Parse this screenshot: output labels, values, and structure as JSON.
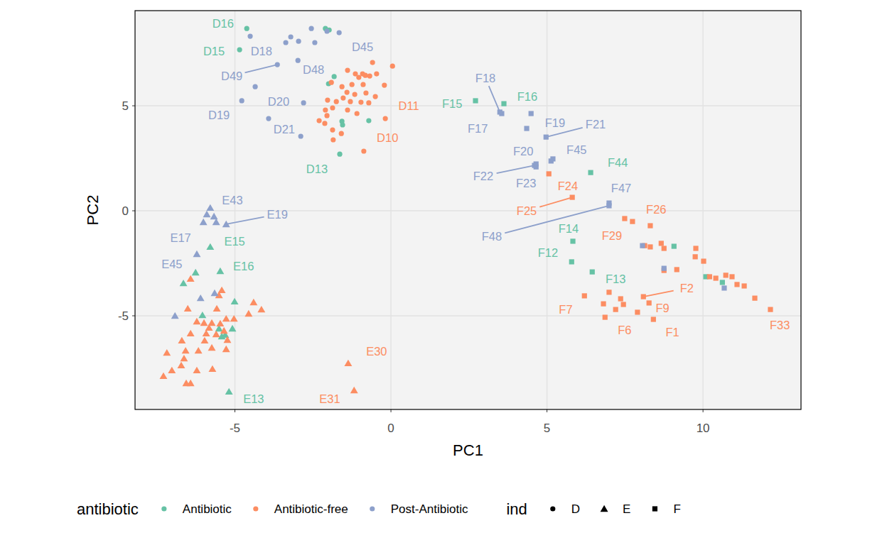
{
  "chart_data": {
    "type": "scatter",
    "x_label": "PC1",
    "y_label": "PC2",
    "xlim": [
      -8.2,
      13.14
    ],
    "ylim": [
      -9.46,
      9.53
    ],
    "xticks": [
      -5,
      0,
      5,
      10
    ],
    "yticks": [
      -5,
      0,
      5
    ],
    "grid": true,
    "legend": "bottom",
    "legends": [
      {
        "title": "antibiotic",
        "entries": [
          {
            "label": "Antibiotic",
            "color": "#66c2a5",
            "marker": "circle"
          },
          {
            "label": "Antibiotic-free",
            "color": "#fc8d62",
            "marker": "circle"
          },
          {
            "label": "Post-Antibiotic",
            "color": "#8da0cb",
            "marker": "circle"
          }
        ]
      },
      {
        "title": "ind",
        "entries": [
          {
            "label": "D",
            "color": "#000000",
            "marker": "circle"
          },
          {
            "label": "E",
            "color": "#000000",
            "marker": "triangle"
          },
          {
            "label": "F",
            "color": "#000000",
            "marker": "square"
          }
        ]
      }
    ],
    "series": [
      {
        "color": "#66c2a5",
        "marker": "circle",
        "x": [
          -4.62,
          -4.85,
          -2.1,
          -1.98,
          -1.82,
          -2.0,
          -1.57,
          -1.55,
          -1.64,
          -0.71
        ],
        "values": [
          8.68,
          7.67,
          8.68,
          8.61,
          6.39,
          6.05,
          4.26,
          4.09,
          2.7,
          4.29
        ],
        "labels": [
          "D16",
          "D15",
          null,
          null,
          null,
          null,
          null,
          null,
          "D13",
          null
        ],
        "label_x": [
          -5.38,
          -5.67,
          null,
          null,
          null,
          null,
          null,
          null,
          -2.37,
          null
        ],
        "label_y": [
          8.92,
          7.6,
          null,
          null,
          null,
          null,
          null,
          null,
          1.99,
          null
        ]
      },
      {
        "color": "#fc8d62",
        "marker": "circle",
        "x": [
          0.05,
          -0.59,
          -1.39,
          -1.14,
          -0.91,
          -1.03,
          -0.82,
          -0.68,
          -0.46,
          -0.21,
          -1.91,
          -1.57,
          -1.25,
          -0.89,
          -1.41,
          -1.16,
          -0.8,
          -0.5,
          -1.53,
          -1.75,
          -2.03,
          -1.3,
          -0.96,
          -0.71,
          -1.87,
          -1.39,
          -2.1,
          -1.09,
          -0.18,
          -2.3,
          -2.12,
          -1.87,
          -1.85,
          -0.87,
          -1.59,
          -2.05
        ],
        "values": [
          6.89,
          7.06,
          6.69,
          6.52,
          6.52,
          6.35,
          6.45,
          6.42,
          6.52,
          5.98,
          6.11,
          5.91,
          6.01,
          6.01,
          5.64,
          5.54,
          5.61,
          5.44,
          5.37,
          5.2,
          5.27,
          5.2,
          5.17,
          5.14,
          4.9,
          4.8,
          4.8,
          4.63,
          4.39,
          4.29,
          4.16,
          3.85,
          3.38,
          2.84,
          3.68,
          4.53
        ],
        "labels": [
          null,
          null,
          null,
          null,
          null,
          null,
          null,
          null,
          null,
          null,
          null,
          null,
          null,
          null,
          null,
          null,
          null,
          null,
          null,
          null,
          null,
          null,
          null,
          null,
          null,
          null,
          null,
          null,
          "D11",
          null,
          null,
          null,
          null,
          "D10",
          null,
          null
        ],
        "label_x": [
          null,
          null,
          null,
          null,
          null,
          null,
          null,
          null,
          null,
          null,
          null,
          null,
          null,
          null,
          null,
          null,
          null,
          null,
          null,
          null,
          null,
          null,
          null,
          null,
          null,
          null,
          null,
          null,
          0.57,
          null,
          null,
          null,
          null,
          -0.11,
          null,
          null
        ],
        "label_y": [
          null,
          null,
          null,
          null,
          null,
          null,
          null,
          null,
          null,
          null,
          null,
          null,
          null,
          null,
          null,
          null,
          null,
          null,
          null,
          null,
          null,
          null,
          null,
          null,
          null,
          null,
          null,
          null,
          5.0,
          null,
          null,
          null,
          null,
          3.48,
          null,
          null
        ]
      },
      {
        "color": "#8da0cb",
        "marker": "circle",
        "x": [
          -4.51,
          -3.37,
          -3.21,
          -2.96,
          -2.55,
          -2.44,
          -2.05,
          -1.66,
          -2.98,
          -3.64,
          -4.35,
          -4.78,
          -3.92,
          -2.8,
          -2.89
        ],
        "values": [
          8.31,
          8.01,
          8.28,
          8.07,
          8.68,
          8.01,
          8.55,
          8.48,
          7.16,
          6.96,
          5.91,
          5.24,
          4.39,
          5.14,
          3.55
        ],
        "labels": [
          null,
          "D18",
          null,
          null,
          null,
          null,
          null,
          "D45",
          "D48",
          "D49",
          null,
          "D19",
          null,
          "D20",
          "D21"
        ],
        "label_x": [
          null,
          -4.15,
          null,
          null,
          null,
          null,
          null,
          -0.91,
          -2.48,
          -5.1,
          null,
          -5.51,
          null,
          -3.6,
          -3.42
        ],
        "label_y": [
          null,
          7.6,
          null,
          null,
          null,
          null,
          null,
          7.8,
          6.72,
          6.42,
          null,
          4.56,
          null,
          5.2,
          3.89
        ]
      },
      {
        "color": "#66c2a5",
        "marker": "triangle",
        "x": [
          -5.79,
          -5.47,
          -6.26,
          -6.65,
          -5.01,
          -6.04,
          -5.51,
          -5.08,
          -5.31,
          -5.42,
          -5.19
        ],
        "values": [
          -1.72,
          -2.87,
          -2.94,
          -3.45,
          -4.32,
          -4.97,
          -5.61,
          -5.61,
          -5.91,
          -5.98,
          -8.61
        ],
        "labels": [
          "E15",
          "E16",
          null,
          null,
          null,
          null,
          null,
          null,
          null,
          null,
          "E13"
        ],
        "label_x": [
          -5.01,
          -4.72,
          null,
          null,
          null,
          null,
          null,
          null,
          null,
          null,
          -4.4
        ],
        "label_y": [
          -1.45,
          -2.64,
          null,
          null,
          null,
          null,
          null,
          null,
          null,
          null,
          -8.95
        ]
      },
      {
        "color": "#fc8d62",
        "marker": "triangle",
        "x": [
          -6.42,
          -5.42,
          -5.51,
          -4.4,
          -4.15,
          -6.51,
          -5.58,
          -6.22,
          -5.99,
          -5.74,
          -5.28,
          -5.03,
          -4.56,
          -5.83,
          -5.47,
          -5.35,
          -6.42,
          -5.92,
          -5.6,
          -6.7,
          -5.97,
          -5.24,
          -6.58,
          -6.17,
          -5.74,
          -5.28,
          -7.18,
          -6.63,
          -7.02,
          -6.22,
          -5.72,
          -6.72,
          -7.29,
          -6.56,
          -6.42,
          -1.37,
          -1.18
        ],
        "values": [
          -3.24,
          -3.78,
          -4.02,
          -4.36,
          -4.7,
          -4.66,
          -4.66,
          -5.27,
          -5.34,
          -5.34,
          -5.14,
          -5.14,
          -4.9,
          -5.57,
          -5.37,
          -5.71,
          -5.84,
          -5.84,
          -5.88,
          -6.18,
          -6.18,
          -6.15,
          -6.66,
          -6.66,
          -6.52,
          -6.59,
          -6.76,
          -7.03,
          -7.6,
          -7.6,
          -7.53,
          -7.36,
          -7.87,
          -8.21,
          -8.21,
          -7.26,
          -8.55
        ],
        "labels": [
          null,
          null,
          null,
          null,
          null,
          null,
          null,
          null,
          null,
          null,
          null,
          null,
          null,
          null,
          null,
          null,
          null,
          null,
          null,
          null,
          null,
          null,
          null,
          null,
          null,
          null,
          null,
          null,
          null,
          null,
          null,
          null,
          null,
          null,
          null,
          "E30",
          "E31"
        ],
        "label_x": [
          null,
          null,
          null,
          null,
          null,
          null,
          null,
          null,
          null,
          null,
          null,
          null,
          null,
          null,
          null,
          null,
          null,
          null,
          null,
          null,
          null,
          null,
          null,
          null,
          null,
          null,
          null,
          null,
          null,
          null,
          null,
          null,
          null,
          null,
          null,
          -0.46,
          -1.96
        ],
        "label_y": [
          null,
          null,
          null,
          null,
          null,
          null,
          null,
          null,
          null,
          null,
          null,
          null,
          null,
          null,
          null,
          null,
          null,
          null,
          null,
          null,
          null,
          null,
          null,
          null,
          null,
          null,
          null,
          null,
          null,
          null,
          null,
          null,
          null,
          null,
          null,
          -6.69,
          -8.95
        ]
      },
      {
        "color": "#8da0cb",
        "marker": "triangle",
        "x": [
          -5.79,
          -5.9,
          -5.67,
          -6.01,
          -5.6,
          -5.28,
          -6.22,
          -6.1,
          -6.92,
          -5.65
        ],
        "values": [
          0.14,
          -0.17,
          -0.27,
          -0.54,
          -0.54,
          -0.64,
          -2.06,
          -4.16,
          -5.0,
          -3.92
        ],
        "labels": [
          "E43",
          null,
          null,
          "E17",
          null,
          "E19",
          "E45",
          null,
          null,
          null
        ],
        "label_x": [
          -5.08,
          null,
          null,
          -6.74,
          null,
          -3.64,
          -7.02,
          null,
          null,
          null
        ],
        "label_y": [
          0.51,
          null,
          null,
          -1.28,
          null,
          -0.17,
          -2.53,
          null,
          null,
          null
        ]
      },
      {
        "color": "#66c2a5",
        "marker": "square",
        "x": [
          2.71,
          3.62,
          6.4,
          5.83,
          5.79,
          6.45,
          9.07,
          10.09,
          10.62
        ],
        "values": [
          5.24,
          5.1,
          1.82,
          -1.45,
          -2.43,
          -2.91,
          -1.69,
          -3.14,
          -3.41
        ],
        "labels": [
          "F15",
          "F16",
          "F44",
          "F14",
          "F12",
          "F13",
          null,
          null,
          null
        ],
        "label_x": [
          1.96,
          4.37,
          7.27,
          5.69,
          5.03,
          7.2,
          null,
          null,
          null
        ],
        "label_y": [
          5.1,
          5.44,
          2.3,
          -0.84,
          -1.99,
          -3.24,
          null,
          null,
          null
        ]
      },
      {
        "color": "#fc8d62",
        "marker": "square",
        "x": [
          5.06,
          5.81,
          7.49,
          7.74,
          8.31,
          8.13,
          8.31,
          8.66,
          8.75,
          9.16,
          9.77,
          9.75,
          10.02,
          10.21,
          10.41,
          10.73,
          10.93,
          11.09,
          11.32,
          11.66,
          12.16,
          6.2,
          6.99,
          7.36,
          6.81,
          6.86,
          7.2,
          7.45,
          7.9,
          8.09,
          8.27,
          8.41,
          8.75
        ],
        "values": [
          1.76,
          0.64,
          -0.37,
          -0.51,
          -0.71,
          -1.66,
          -1.72,
          -1.55,
          -1.79,
          -2.8,
          -1.79,
          -2.19,
          -2.4,
          -3.14,
          -3.21,
          -3.07,
          -3.14,
          -3.51,
          -3.58,
          -4.16,
          -4.7,
          -4.05,
          -3.88,
          -4.19,
          -4.43,
          -5.07,
          -4.7,
          -4.46,
          -4.83,
          -4.09,
          -4.39,
          -5.17,
          -2.84
        ],
        "labels": [
          "F24",
          "F25",
          "F26",
          "F29",
          null,
          null,
          null,
          null,
          null,
          null,
          null,
          null,
          null,
          null,
          null,
          null,
          null,
          null,
          null,
          null,
          "F33",
          "F7",
          null,
          null,
          null,
          "F6",
          null,
          null,
          null,
          "F2",
          "F9",
          "F1",
          null
        ],
        "label_x": [
          5.67,
          4.35,
          8.5,
          7.08,
          null,
          null,
          null,
          null,
          null,
          null,
          null,
          null,
          null,
          null,
          null,
          null,
          null,
          null,
          null,
          null,
          12.46,
          5.6,
          null,
          null,
          null,
          7.49,
          null,
          null,
          null,
          9.48,
          8.7,
          9.02,
          null
        ],
        "label_y": [
          1.18,
          0.0,
          0.07,
          -1.18,
          null,
          null,
          null,
          null,
          null,
          null,
          null,
          null,
          null,
          null,
          null,
          null,
          null,
          null,
          null,
          null,
          -5.44,
          -4.7,
          null,
          null,
          null,
          -5.68,
          null,
          null,
          null,
          -3.68,
          -4.63,
          -5.78,
          null
        ]
      },
      {
        "color": "#8da0cb",
        "marker": "square",
        "x": [
          3.49,
          3.55,
          4.49,
          4.35,
          4.97,
          4.65,
          4.65,
          4.6,
          5.13,
          5.19,
          6.99,
          6.99,
          8.06,
          8.75,
          10.68
        ],
        "values": [
          4.7,
          4.63,
          4.63,
          3.92,
          3.51,
          2.23,
          2.09,
          2.16,
          2.37,
          2.47,
          0.37,
          0.24,
          -1.66,
          -2.74,
          -3.68
        ],
        "labels": [
          "F18",
          "F17",
          "F19",
          null,
          "F21",
          "F20",
          "F23",
          "F22",
          null,
          "F45",
          "F47",
          "F48",
          null,
          null,
          null
        ],
        "label_x": [
          3.03,
          2.78,
          5.26,
          null,
          6.56,
          4.24,
          4.33,
          2.96,
          null,
          5.95,
          7.38,
          3.23,
          null,
          null,
          null
        ],
        "label_y": [
          6.32,
          3.92,
          4.19,
          null,
          4.12,
          2.84,
          1.32,
          1.66,
          null,
          2.91,
          1.08,
          -1.22,
          null,
          null,
          null
        ]
      }
    ]
  }
}
